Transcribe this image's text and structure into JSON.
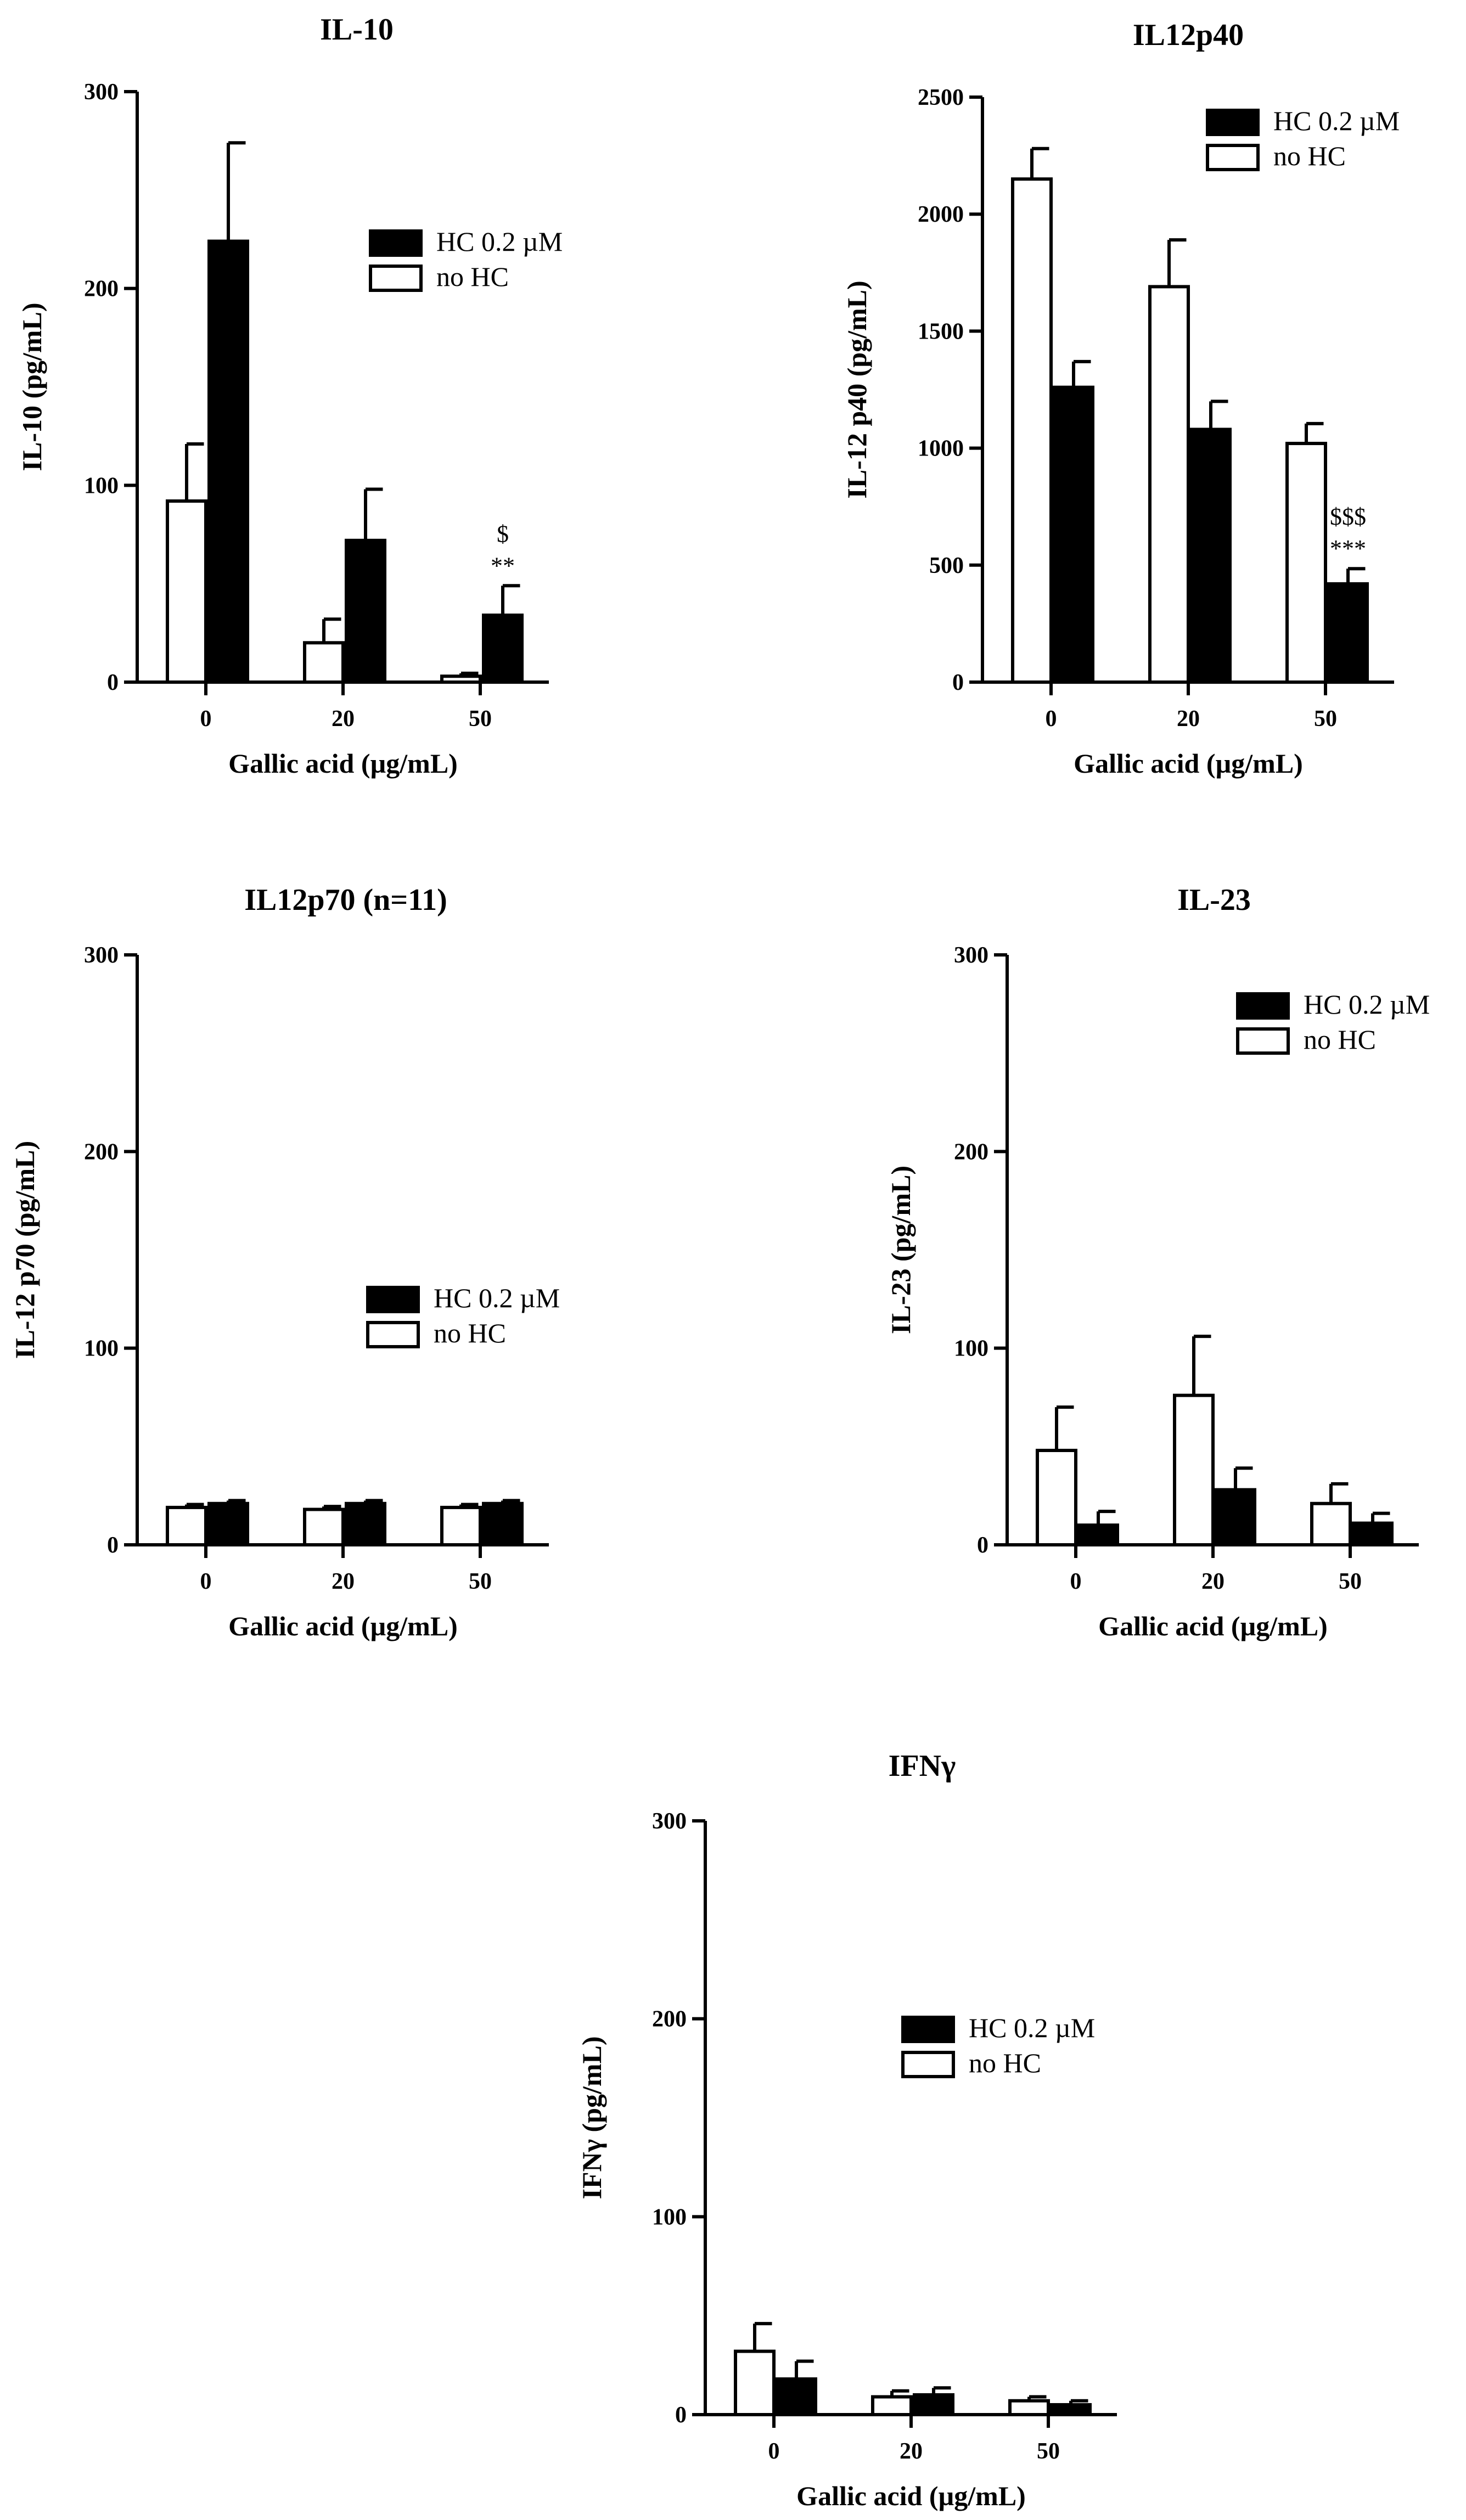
{
  "colors": {
    "filled": "#000000",
    "open": "#ffffff",
    "stroke": "#000000"
  },
  "chart_data": [
    {
      "type": "bar",
      "title": "IL-10",
      "xlabel": "Gallic acid (µg/mL)",
      "ylabel": "IL-10 (pg/mL)",
      "categories": [
        "0",
        "20",
        "50"
      ],
      "ylim": [
        0,
        300
      ],
      "yticks": [
        0,
        100,
        200,
        300
      ],
      "legend_placement": "upper-right",
      "legend": [
        {
          "label": "HC 0.2 µM",
          "fill": "filled"
        },
        {
          "label": "no HC",
          "fill": "open"
        }
      ],
      "series": [
        {
          "name": "no HC",
          "fill": "open",
          "values": [
            92,
            20,
            3
          ],
          "errors": [
            29,
            12,
            1.5
          ]
        },
        {
          "name": "HC 0.2 µM",
          "fill": "filled",
          "values": [
            224,
            72,
            34
          ],
          "errors": [
            50,
            26,
            15
          ]
        }
      ],
      "annotations": [
        {
          "category": "50",
          "series": "HC 0.2 µM",
          "lines": [
            "$",
            "**"
          ]
        }
      ]
    },
    {
      "type": "bar",
      "title": "IL12p40",
      "xlabel": "Gallic acid (µg/mL)",
      "ylabel": "IL-12 p40 (pg/mL)",
      "categories": [
        "0",
        "20",
        "50"
      ],
      "ylim": [
        0,
        2500
      ],
      "yticks": [
        0,
        500,
        1000,
        1500,
        2000,
        2500
      ],
      "legend_placement": "top-right",
      "legend": [
        {
          "label": "HC 0.2 µM",
          "fill": "filled"
        },
        {
          "label": "no HC",
          "fill": "open"
        }
      ],
      "series": [
        {
          "name": "no HC",
          "fill": "open",
          "values": [
            2150,
            1690,
            1020
          ],
          "errors": [
            130,
            200,
            85
          ]
        },
        {
          "name": "HC 0.2 µM",
          "fill": "filled",
          "values": [
            1260,
            1080,
            420
          ],
          "errors": [
            110,
            120,
            65
          ]
        }
      ],
      "annotations": [
        {
          "category": "50",
          "series": "HC 0.2 µM",
          "lines": [
            "$$$",
            "***"
          ]
        }
      ]
    },
    {
      "type": "bar",
      "title": "IL12p70 (n=11)",
      "xlabel": "Gallic acid (µg/mL)",
      "ylabel": "IL-12 p70 (pg/mL)",
      "categories": [
        "0",
        "20",
        "50"
      ],
      "ylim": [
        0,
        300
      ],
      "yticks": [
        0,
        100,
        200,
        300
      ],
      "legend_placement": "center-right",
      "legend": [
        {
          "label": "HC 0.2 µM",
          "fill": "filled"
        },
        {
          "label": "no HC",
          "fill": "open"
        }
      ],
      "series": [
        {
          "name": "no HC",
          "fill": "open",
          "values": [
            19,
            18,
            19
          ],
          "errors": [
            1.5,
            1.5,
            1.5
          ]
        },
        {
          "name": "HC 0.2 µM",
          "fill": "filled",
          "values": [
            21,
            21,
            21
          ],
          "errors": [
            1.5,
            1.5,
            1.5
          ]
        }
      ],
      "annotations": []
    },
    {
      "type": "bar",
      "title": "IL-23",
      "xlabel": "Gallic acid (µg/mL)",
      "ylabel": "IL-23 (pg/mL)",
      "categories": [
        "0",
        "20",
        "50"
      ],
      "ylim": [
        0,
        300
      ],
      "yticks": [
        0,
        100,
        200,
        300
      ],
      "legend_placement": "upper-right",
      "legend": [
        {
          "label": "HC 0.2 µM",
          "fill": "filled"
        },
        {
          "label": "no HC",
          "fill": "open"
        }
      ],
      "series": [
        {
          "name": "no HC",
          "fill": "open",
          "values": [
            48,
            76,
            21
          ],
          "errors": [
            22,
            30,
            10
          ]
        },
        {
          "name": "HC 0.2 µM",
          "fill": "filled",
          "values": [
            10,
            28,
            11
          ],
          "errors": [
            7,
            11,
            5
          ]
        }
      ],
      "annotations": []
    },
    {
      "type": "bar",
      "title": "IFNγ",
      "xlabel": "Gallic acid (µg/mL)",
      "ylabel": "IFNγ (pg/mL)",
      "categories": [
        "0",
        "20",
        "50"
      ],
      "ylim": [
        0,
        300
      ],
      "yticks": [
        0,
        100,
        200,
        300
      ],
      "legend_placement": "center-right",
      "legend": [
        {
          "label": "HC 0.2 µM",
          "fill": "filled"
        },
        {
          "label": "no HC",
          "fill": "open"
        }
      ],
      "series": [
        {
          "name": "no HC",
          "fill": "open",
          "values": [
            32,
            9,
            7
          ],
          "errors": [
            14,
            3,
            2
          ]
        },
        {
          "name": "HC 0.2 µM",
          "fill": "filled",
          "values": [
            18,
            10,
            5
          ],
          "errors": [
            9,
            3.5,
            2
          ]
        }
      ],
      "annotations": []
    }
  ]
}
